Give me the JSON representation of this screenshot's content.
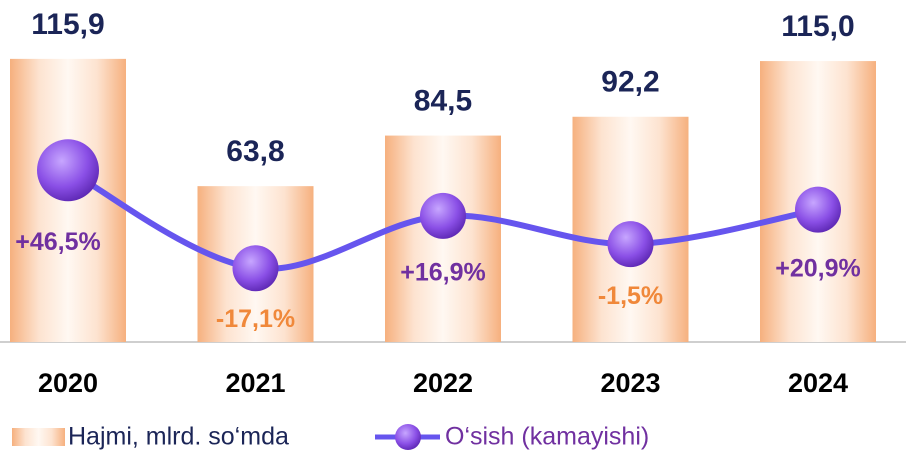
{
  "chart_data": {
    "type": "bar",
    "categories": [
      "2020",
      "2021",
      "2022",
      "2023",
      "2024"
    ],
    "ylim": [
      0,
      140
    ],
    "y2lim": [
      -65,
      157
    ],
    "series": [
      {
        "name": "Hajmi, mlrd. so‘mda",
        "type": "bar",
        "color": "#f6b07e",
        "values": [
          115.9,
          63.8,
          84.5,
          92.2,
          115.0
        ],
        "value_labels": [
          "115,9",
          "63,8",
          "84,5",
          "92,2",
          "115,0"
        ],
        "label_color": "#1b2557"
      },
      {
        "name": "O‘sish (kamayishi)",
        "type": "line",
        "axis": "y2",
        "color": "#6655ee",
        "marker_color": "#7a3fd6",
        "values": [
          46.5,
          -17.1,
          16.9,
          -1.5,
          20.9
        ],
        "value_labels": [
          "+46,5%",
          "-17,1%",
          "+16,9%",
          "-1,5%",
          "+20,9%"
        ],
        "positive_label_color": "#7030a0",
        "negative_label_color": "#f0883a"
      }
    ]
  }
}
